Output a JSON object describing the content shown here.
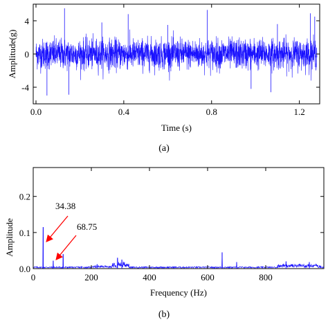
{
  "chart_data": [
    {
      "type": "line",
      "panel_label": "(a)",
      "xlabel": "Time (s)",
      "ylabel": "Amplitude(g)",
      "xlim": [
        0,
        1.28
      ],
      "ylim": [
        -6,
        6
      ],
      "xticks": [
        0.0,
        0.4,
        0.8,
        1.2
      ],
      "xtick_labels": [
        "0.0",
        "0.4",
        "0.8",
        "1.2"
      ],
      "yticks": [
        4,
        0,
        -4
      ],
      "ytick_labels": [
        "4",
        "0",
        "-4"
      ],
      "series": [
        {
          "color": "#1a12ff",
          "description_of_shape": "dense vibration signal",
          "noise_std": 0.9,
          "spikes": [
            [
              0.13,
              5.5
            ],
            [
              0.15,
              -4.9
            ],
            [
              0.42,
              4.8
            ],
            [
              0.78,
              5.3
            ],
            [
              0.98,
              -4.2
            ],
            [
              1.07,
              -4.6
            ],
            [
              1.1,
              3.6
            ],
            [
              1.25,
              4.9
            ],
            [
              1.27,
              4.5
            ],
            [
              0.05,
              -5.0
            ],
            [
              0.3,
              3.8
            ],
            [
              0.6,
              3.5
            ]
          ]
        }
      ],
      "grid": false
    },
    {
      "type": "line",
      "panel_label": "(b)",
      "xlabel": "Frequency (Hz)",
      "ylabel": "Amplitude",
      "xlim": [
        0,
        1000
      ],
      "ylim": [
        0,
        0.28
      ],
      "xticks": [
        0,
        200,
        400,
        600,
        800
      ],
      "xtick_labels": [
        "0",
        "200",
        "400",
        "600",
        "800"
      ],
      "yticks": [
        0.0,
        0.1,
        0.2
      ],
      "ytick_labels": [
        "0.0",
        "0.1",
        "0.2"
      ],
      "peaks": [
        {
          "x": 34.38,
          "y": 0.115
        },
        {
          "x": 68.75,
          "y": 0.022
        },
        {
          "x": 103,
          "y": 0.04
        },
        {
          "x": 165,
          "y": 0.006
        },
        {
          "x": 220,
          "y": 0.012
        },
        {
          "x": 290,
          "y": 0.03
        },
        {
          "x": 305,
          "y": 0.025
        },
        {
          "x": 650,
          "y": 0.045
        },
        {
          "x": 700,
          "y": 0.018
        },
        {
          "x": 870,
          "y": 0.02
        },
        {
          "x": 950,
          "y": 0.018
        }
      ],
      "annotations": [
        {
          "text": "34.38",
          "target_x": 34.38
        },
        {
          "text": "68.75",
          "target_x": 68.75
        }
      ],
      "line_color": "#1a12ff",
      "arrow_color": "#ff0000",
      "grid": false
    }
  ]
}
